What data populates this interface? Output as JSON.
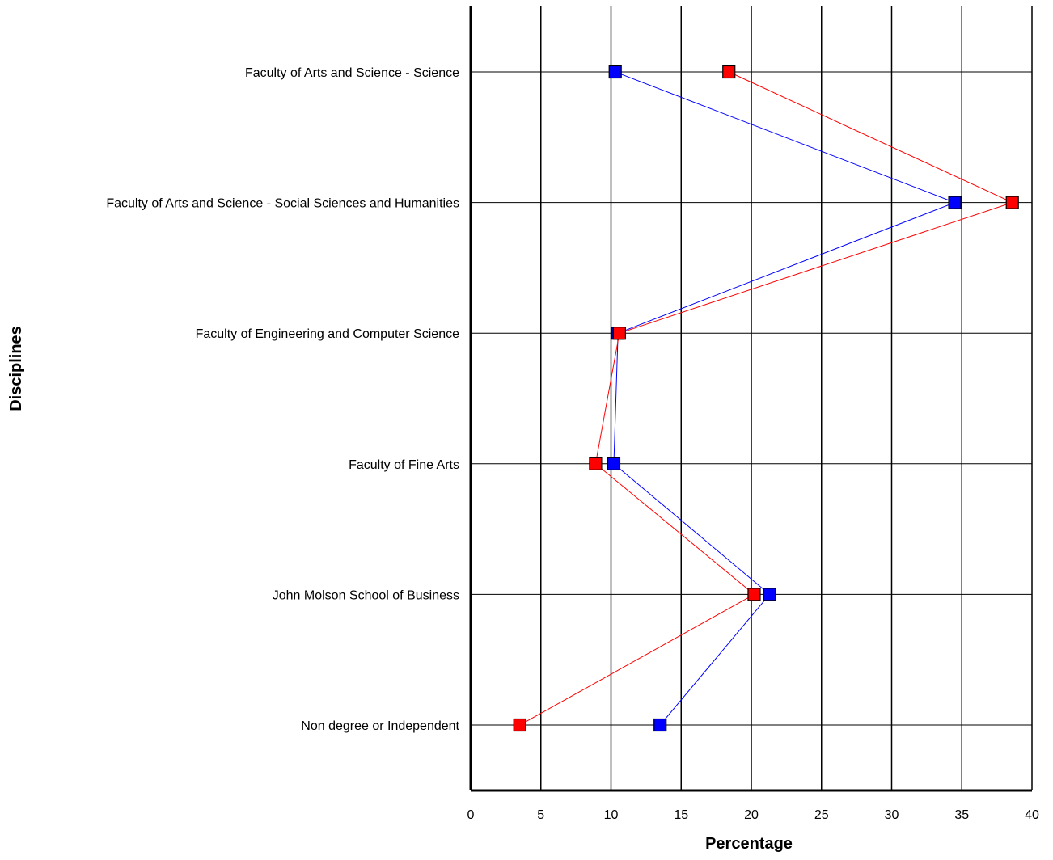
{
  "chart_data": {
    "type": "line",
    "orientation": "horizontal",
    "title": "",
    "xlabel": "Percentage",
    "ylabel": "Disciplines",
    "xlim": [
      0,
      40
    ],
    "x_ticks": [
      0,
      5,
      10,
      15,
      20,
      25,
      30,
      35,
      40
    ],
    "grid": true,
    "legend": "none",
    "categories": [
      "Faculty of Arts and Science - Science",
      "Faculty of Arts and Science - Social Sciences and Humanities",
      "Faculty of Engineering and Computer Science",
      "Faculty of Fine Arts",
      "John Molson School of Business",
      "Non degree or Independent"
    ],
    "series": [
      {
        "color": "#0000ff",
        "values": [
          10.3,
          34.5,
          10.5,
          10.2,
          21.3,
          13.5
        ]
      },
      {
        "color": "#ff0000",
        "values": [
          18.4,
          38.6,
          10.6,
          8.9,
          20.2,
          3.5
        ]
      }
    ]
  }
}
